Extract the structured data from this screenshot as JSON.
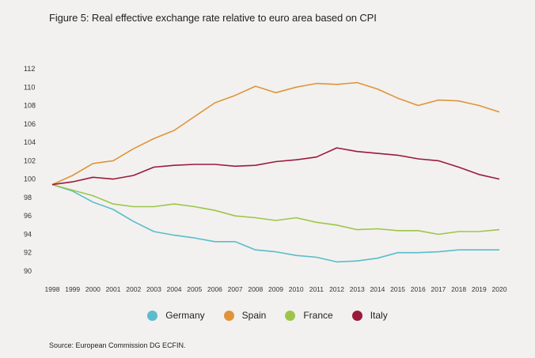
{
  "title": "Figure 5: Real effective exchange rate relative to euro area based on CPI",
  "source": "Source: European Commission DG ECFIN.",
  "chart_data": {
    "type": "line",
    "title": "Figure 5: Real effective exchange rate relative to euro area based on CPI",
    "xlabel": "",
    "ylabel": "",
    "x": [
      "1998",
      "1999",
      "2000",
      "2001",
      "2002",
      "2003",
      "2004",
      "2005",
      "2006",
      "2007",
      "2008",
      "2009",
      "2010",
      "2011",
      "2012",
      "2013",
      "2014",
      "2015",
      "2016",
      "2017",
      "2018",
      "2019",
      "2020"
    ],
    "ylim": [
      90,
      112
    ],
    "yticks": [
      90,
      92,
      94,
      96,
      98,
      100,
      102,
      104,
      106,
      108,
      110,
      112
    ],
    "grid": false,
    "legend_position": "bottom",
    "series": [
      {
        "name": "Germany",
        "color": "#5bbccc",
        "values": [
          99.4,
          98.7,
          97.5,
          96.7,
          95.4,
          94.3,
          93.9,
          93.6,
          93.2,
          93.2,
          92.3,
          92.1,
          91.7,
          91.5,
          91.0,
          91.1,
          91.4,
          92.0,
          92.0,
          92.1,
          92.3,
          92.3,
          92.3
        ]
      },
      {
        "name": "Spain",
        "color": "#e0943a",
        "values": [
          99.4,
          100.4,
          101.7,
          102.0,
          103.3,
          104.4,
          105.3,
          106.8,
          108.3,
          109.1,
          110.1,
          109.4,
          110.0,
          110.4,
          110.3,
          110.5,
          109.8,
          108.8,
          108.0,
          108.6,
          108.5,
          108.0,
          107.3
        ]
      },
      {
        "name": "France",
        "color": "#9cc64a",
        "values": [
          99.4,
          98.8,
          98.2,
          97.3,
          97.0,
          97.0,
          97.3,
          97.0,
          96.6,
          96.0,
          95.8,
          95.5,
          95.8,
          95.3,
          95.0,
          94.5,
          94.6,
          94.4,
          94.4,
          94.0,
          94.3,
          94.3,
          94.5
        ]
      },
      {
        "name": "Italy",
        "color": "#9a1a3b",
        "values": [
          99.4,
          99.7,
          100.2,
          100.0,
          100.4,
          101.3,
          101.5,
          101.6,
          101.6,
          101.4,
          101.5,
          101.9,
          102.1,
          102.4,
          103.4,
          103.0,
          102.8,
          102.6,
          102.2,
          102.0,
          101.3,
          100.5,
          100.0
        ]
      }
    ]
  }
}
